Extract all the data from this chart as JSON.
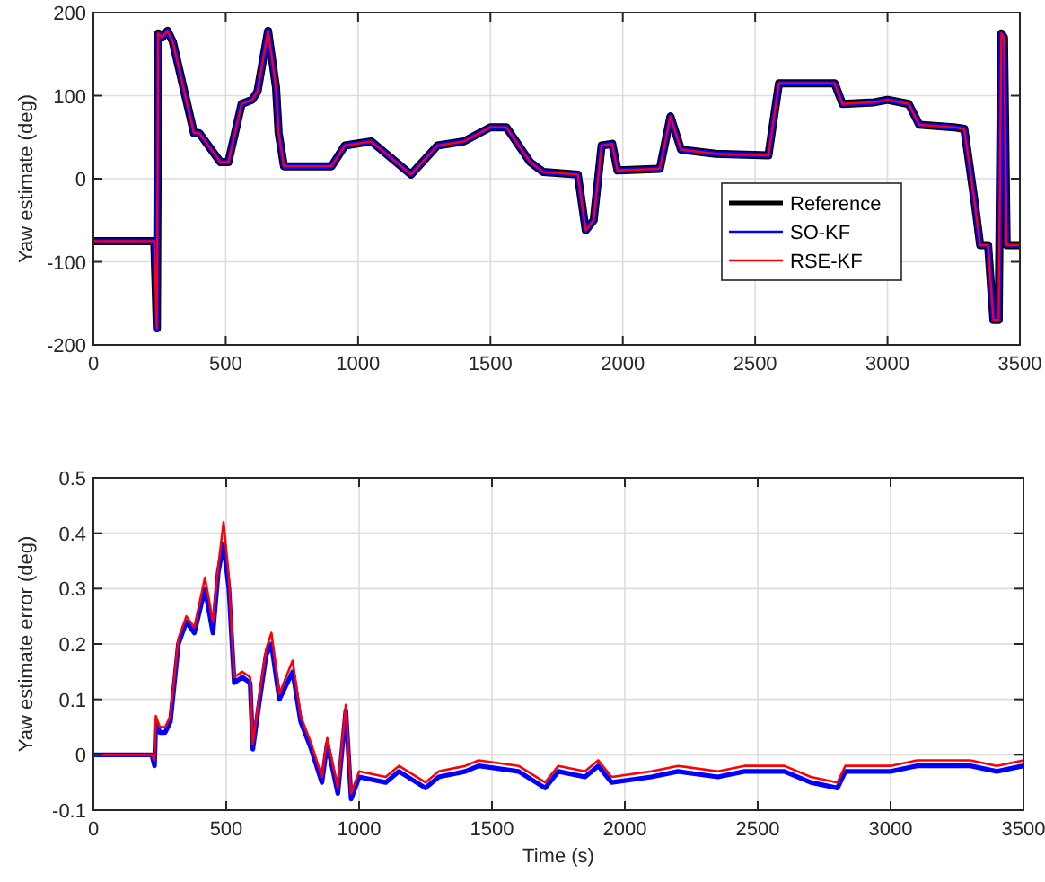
{
  "chart_data": [
    {
      "type": "line",
      "ylabel": "Yaw estimate (deg)",
      "xlim": [
        0,
        3500
      ],
      "ylim": [
        -200,
        200
      ],
      "xticks": [
        0,
        500,
        1000,
        1500,
        2000,
        2500,
        3000,
        3500
      ],
      "yticks": [
        -200,
        -100,
        0,
        100,
        200
      ],
      "grid": true,
      "legend": "bottom right",
      "line_style": "solid",
      "x": [
        0,
        230,
        240,
        245,
        260,
        280,
        300,
        380,
        400,
        480,
        510,
        560,
        600,
        620,
        660,
        690,
        700,
        720,
        900,
        950,
        1050,
        1200,
        1300,
        1400,
        1500,
        1560,
        1650,
        1700,
        1830,
        1860,
        1890,
        1920,
        1960,
        1980,
        2140,
        2180,
        2220,
        2350,
        2550,
        2590,
        2800,
        2830,
        2950,
        3000,
        3080,
        3120,
        3250,
        3290,
        3330,
        3350,
        3380,
        3400,
        3420,
        3430,
        3440,
        3450,
        3500
      ],
      "series": [
        {
          "name": "Reference",
          "color": "#000000",
          "values": [
            -75,
            -75,
            -180,
            175,
            170,
            178,
            165,
            55,
            55,
            20,
            20,
            90,
            95,
            105,
            178,
            110,
            55,
            15,
            15,
            40,
            45,
            5,
            40,
            45,
            62,
            62,
            20,
            8,
            5,
            -62,
            -50,
            40,
            42,
            10,
            12,
            75,
            35,
            30,
            28,
            115,
            115,
            90,
            92,
            95,
            90,
            65,
            62,
            60,
            -30,
            -80,
            -80,
            -170,
            -170,
            175,
            170,
            -80,
            -80
          ]
        },
        {
          "name": "SO-KF",
          "color": "#0000ff",
          "values": [
            -75,
            -75,
            -180,
            175,
            170,
            178,
            165,
            55,
            55,
            20,
            20,
            90,
            95,
            105,
            178,
            110,
            55,
            15,
            15,
            40,
            45,
            5,
            40,
            45,
            62,
            62,
            20,
            8,
            5,
            -62,
            -50,
            40,
            42,
            10,
            12,
            75,
            35,
            30,
            28,
            115,
            115,
            90,
            92,
            95,
            90,
            65,
            62,
            60,
            -30,
            -80,
            -80,
            -170,
            -170,
            175,
            170,
            -80,
            -80
          ]
        },
        {
          "name": "RSE-KF",
          "color": "#ff0000",
          "values": [
            -75,
            -75,
            -180,
            175,
            170,
            178,
            165,
            55,
            55,
            20,
            20,
            90,
            95,
            105,
            178,
            110,
            55,
            15,
            15,
            40,
            45,
            5,
            40,
            45,
            62,
            62,
            20,
            8,
            5,
            -62,
            -50,
            40,
            42,
            10,
            12,
            75,
            35,
            30,
            28,
            115,
            115,
            90,
            92,
            95,
            90,
            65,
            62,
            60,
            -30,
            -80,
            -80,
            -170,
            -170,
            175,
            170,
            -80,
            -80
          ]
        }
      ]
    },
    {
      "type": "line",
      "xlabel": "Time (s)",
      "ylabel": "Yaw estimate error (deg)",
      "xlim": [
        0,
        3500
      ],
      "ylim": [
        -0.1,
        0.5
      ],
      "xticks": [
        0,
        500,
        1000,
        1500,
        2000,
        2500,
        3000,
        3500
      ],
      "yticks": [
        -0.1,
        0,
        0.1,
        0.2,
        0.3,
        0.4,
        0.5
      ],
      "grid": true,
      "line_style": "solid",
      "x": [
        0,
        220,
        230,
        235,
        250,
        270,
        290,
        320,
        350,
        380,
        420,
        450,
        470,
        490,
        510,
        530,
        560,
        590,
        600,
        620,
        650,
        670,
        700,
        750,
        780,
        820,
        860,
        880,
        920,
        950,
        970,
        1000,
        1100,
        1150,
        1250,
        1300,
        1400,
        1450,
        1600,
        1700,
        1750,
        1850,
        1900,
        1950,
        2100,
        2200,
        2350,
        2450,
        2600,
        2700,
        2800,
        2830,
        3000,
        3100,
        3300,
        3400,
        3500
      ],
      "series": [
        {
          "color": "#0000ff",
          "values": [
            0,
            0,
            -0.02,
            0.06,
            0.04,
            0.04,
            0.06,
            0.2,
            0.24,
            0.22,
            0.3,
            0.22,
            0.33,
            0.38,
            0.3,
            0.13,
            0.14,
            0.13,
            0.01,
            0.08,
            0.18,
            0.2,
            0.1,
            0.15,
            0.06,
            0.01,
            -0.05,
            0.02,
            -0.07,
            0.08,
            -0.08,
            -0.04,
            -0.05,
            -0.03,
            -0.06,
            -0.04,
            -0.03,
            -0.02,
            -0.03,
            -0.06,
            -0.03,
            -0.04,
            -0.02,
            -0.05,
            -0.04,
            -0.03,
            -0.04,
            -0.03,
            -0.03,
            -0.05,
            -0.06,
            -0.03,
            -0.03,
            -0.02,
            -0.02,
            -0.03,
            -0.02
          ]
        },
        {
          "color": "#ff0000",
          "values": [
            0,
            0,
            -0.01,
            0.07,
            0.05,
            0.05,
            0.07,
            0.21,
            0.25,
            0.23,
            0.32,
            0.24,
            0.34,
            0.42,
            0.32,
            0.14,
            0.15,
            0.14,
            0.02,
            0.09,
            0.19,
            0.22,
            0.11,
            0.17,
            0.07,
            0.02,
            -0.04,
            0.03,
            -0.06,
            0.09,
            -0.07,
            -0.03,
            -0.04,
            -0.02,
            -0.05,
            -0.03,
            -0.02,
            -0.01,
            -0.02,
            -0.05,
            -0.02,
            -0.03,
            -0.01,
            -0.04,
            -0.03,
            -0.02,
            -0.03,
            -0.02,
            -0.02,
            -0.04,
            -0.05,
            -0.02,
            -0.02,
            -0.01,
            -0.01,
            -0.02,
            -0.01
          ]
        }
      ]
    }
  ]
}
